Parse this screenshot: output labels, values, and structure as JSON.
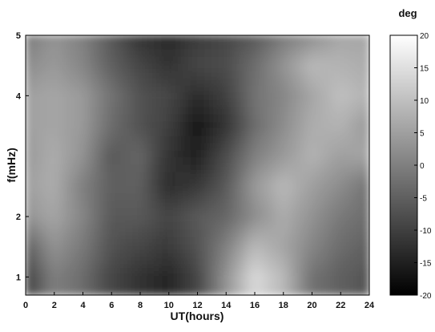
{
  "chart_data": {
    "type": "heatmap",
    "title": "",
    "xlabel": "UT(hours)",
    "ylabel": "f(mHz)",
    "xlim": [
      0,
      24
    ],
    "ylim": [
      0.7,
      5
    ],
    "x_ticks": [
      "0",
      "2",
      "4",
      "6",
      "8",
      "10",
      "12",
      "14",
      "16",
      "18",
      "20",
      "22",
      "24"
    ],
    "y_ticks": [
      "1",
      "2",
      "4",
      "5"
    ],
    "colorbar": {
      "label": "deg",
      "range": [
        -20,
        20
      ],
      "colormap": "gray",
      "ticks": [
        "20",
        "15",
        "10",
        "5",
        "0",
        "-5",
        "-10",
        "-15",
        "-20"
      ]
    },
    "colors": {
      "low": "#000000",
      "high": "#ffffff",
      "axis": "#000000"
    },
    "x": [
      0,
      2,
      4,
      6,
      8,
      10,
      12,
      14,
      16,
      18,
      20,
      22,
      24
    ],
    "y": [
      1,
      1.5,
      2,
      2.5,
      3,
      3.5,
      4,
      4.5,
      5
    ],
    "z": [
      [
        -10,
        0,
        -3,
        -9,
        -12,
        -14,
        -9,
        3,
        14,
        9,
        -2,
        -5,
        -7
      ],
      [
        -5,
        3,
        -1,
        -7,
        -9,
        -11,
        -7,
        0,
        9,
        6,
        1,
        -3,
        -5
      ],
      [
        3,
        6,
        1,
        -6,
        -6,
        -9,
        -6,
        -4,
        2,
        7,
        3,
        -1,
        -3
      ],
      [
        5,
        7,
        0,
        -5,
        -5,
        -13,
        -11,
        -6,
        4,
        9,
        5,
        2,
        -2
      ],
      [
        4,
        7,
        3,
        -6,
        -4,
        -12,
        -15,
        -8,
        0,
        4,
        8,
        5,
        6
      ],
      [
        5,
        6,
        4,
        -3,
        -7,
        -10,
        -16,
        -12,
        -3,
        2,
        7,
        8,
        4
      ],
      [
        5,
        6,
        4,
        -2,
        -7,
        -9,
        -13,
        -10,
        -2,
        1,
        6,
        10,
        8
      ],
      [
        2,
        4,
        1,
        -5,
        -9,
        -12,
        -9,
        -8,
        -3,
        3,
        9,
        8,
        7
      ],
      [
        -1,
        3,
        0,
        -6,
        -12,
        -14,
        -11,
        -9,
        -6,
        -1,
        2,
        6,
        6
      ]
    ]
  }
}
